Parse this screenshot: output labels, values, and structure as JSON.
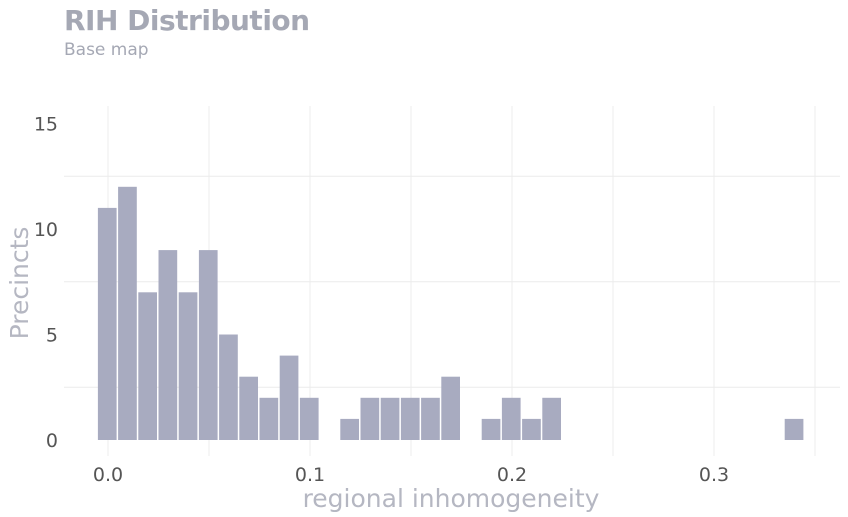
{
  "chart_data": {
    "type": "bar",
    "title": "RIH Distribution",
    "subtitle": "Base map",
    "xlabel": "regional inhomogeneity",
    "ylabel": "Precincts",
    "xlim": [
      -0.015,
      0.35
    ],
    "ylim": [
      0,
      15
    ],
    "bin_width": 0.01,
    "x_ticks": [
      0.0,
      0.1,
      0.2,
      0.3
    ],
    "x_tick_labels": [
      "0.0",
      "0.1",
      "0.2",
      "0.3"
    ],
    "y_ticks": [
      0,
      5,
      10,
      15
    ],
    "y_tick_labels": [
      "0",
      "5",
      "10",
      "15"
    ],
    "bins": [
      {
        "x0": -0.005,
        "count": 11
      },
      {
        "x0": 0.005,
        "count": 12
      },
      {
        "x0": 0.015,
        "count": 7
      },
      {
        "x0": 0.025,
        "count": 9
      },
      {
        "x0": 0.035,
        "count": 7
      },
      {
        "x0": 0.045,
        "count": 9
      },
      {
        "x0": 0.055,
        "count": 5
      },
      {
        "x0": 0.065,
        "count": 3
      },
      {
        "x0": 0.075,
        "count": 2
      },
      {
        "x0": 0.085,
        "count": 4
      },
      {
        "x0": 0.095,
        "count": 2
      },
      {
        "x0": 0.115,
        "count": 1
      },
      {
        "x0": 0.125,
        "count": 2
      },
      {
        "x0": 0.135,
        "count": 2
      },
      {
        "x0": 0.145,
        "count": 2
      },
      {
        "x0": 0.155,
        "count": 2
      },
      {
        "x0": 0.165,
        "count": 3
      },
      {
        "x0": 0.185,
        "count": 1
      },
      {
        "x0": 0.195,
        "count": 2
      },
      {
        "x0": 0.205,
        "count": 1
      },
      {
        "x0": 0.215,
        "count": 2
      },
      {
        "x0": 0.335,
        "count": 1
      }
    ],
    "grid": true,
    "colors": {
      "bar": "#a8abc0",
      "grid": "#ececec",
      "title": "#a5a8b4"
    }
  }
}
